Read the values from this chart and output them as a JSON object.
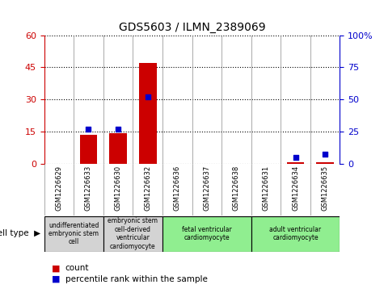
{
  "title": "GDS5603 / ILMN_2389069",
  "samples": [
    "GSM1226629",
    "GSM1226633",
    "GSM1226630",
    "GSM1226632",
    "GSM1226636",
    "GSM1226637",
    "GSM1226638",
    "GSM1226631",
    "GSM1226634",
    "GSM1226635"
  ],
  "counts": [
    0,
    13.5,
    14.5,
    47,
    0,
    0,
    0,
    0,
    1,
    1
  ],
  "percentiles": [
    0,
    27,
    27,
    52,
    0,
    0,
    0,
    0,
    5,
    8
  ],
  "ylim_left": [
    0,
    60
  ],
  "ylim_right": [
    0,
    100
  ],
  "yticks_left": [
    0,
    15,
    30,
    45,
    60
  ],
  "yticks_right": [
    0,
    25,
    50,
    75,
    100
  ],
  "ytick_labels_left": [
    "0",
    "15",
    "30",
    "45",
    "60"
  ],
  "ytick_labels_right": [
    "0",
    "25",
    "50",
    "75",
    "100%"
  ],
  "bar_color": "#cc0000",
  "dot_color": "#0000cc",
  "cell_type_groups": [
    {
      "label": "undifferentiated\nembryonic stem\ncell",
      "start": 0,
      "end": 2,
      "color": "#d3d3d3"
    },
    {
      "label": "embryonic stem\ncell-derived\nventricular\ncardiomyocyte",
      "start": 2,
      "end": 4,
      "color": "#d3d3d3"
    },
    {
      "label": "fetal ventricular\ncardiomyocyte",
      "start": 4,
      "end": 7,
      "color": "#90ee90"
    },
    {
      "label": "adult ventricular\ncardiomyocyte",
      "start": 7,
      "end": 10,
      "color": "#90ee90"
    }
  ],
  "cell_type_label": "cell type",
  "legend_count_label": "count",
  "legend_pct_label": "percentile rank within the sample",
  "background_color": "#ffffff",
  "plot_bg_color": "#ffffff",
  "tick_label_color_left": "#cc0000",
  "tick_label_color_right": "#0000cc"
}
